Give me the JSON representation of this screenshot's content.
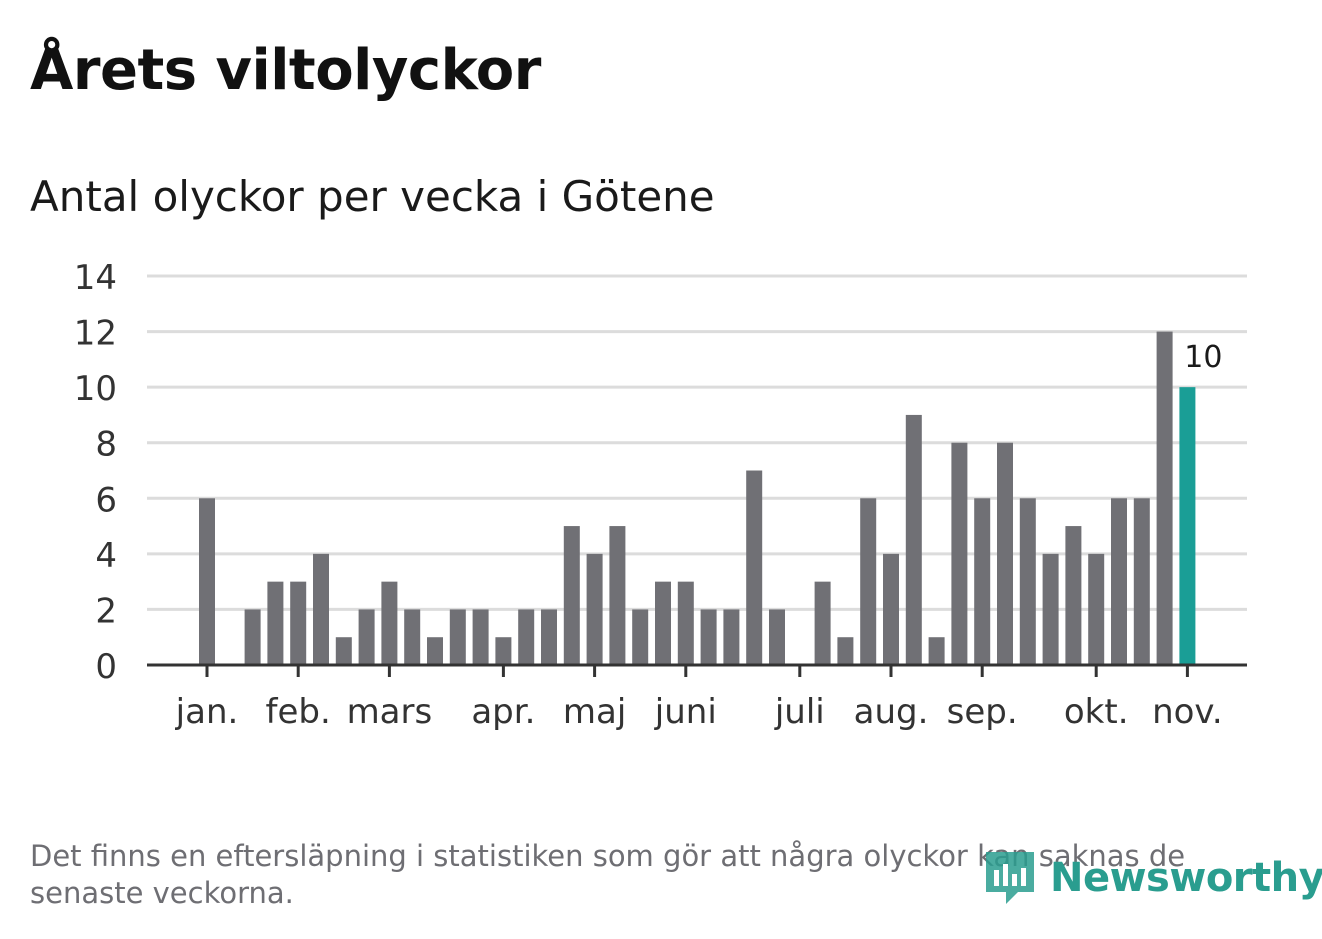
{
  "header": {
    "title": "Årets viltolyckor",
    "subtitle": "Antal olyckor per vecka i Götene"
  },
  "footer": {
    "note": "Det finns en eftersläpning i statistiken som gör att några olyckor kan saknas de senaste veckorna.",
    "brand": "Newsworthy"
  },
  "colors": {
    "bar": "#707075",
    "highlight": "#1a9e96",
    "grid": "#dcdcdc",
    "axis": "#333333",
    "brand": "#2a9d8f"
  },
  "chart_data": {
    "type": "bar",
    "ylim": [
      0,
      14
    ],
    "yticks": [
      0,
      2,
      4,
      6,
      8,
      10,
      12,
      14
    ],
    "weeks": [
      1,
      2,
      3,
      4,
      5,
      6,
      7,
      8,
      9,
      10,
      11,
      12,
      13,
      14,
      15,
      16,
      17,
      18,
      19,
      20,
      21,
      22,
      23,
      24,
      25,
      26,
      27,
      28,
      29,
      30,
      31,
      32,
      33,
      34,
      35,
      36,
      37,
      38,
      39,
      40,
      41,
      42,
      43,
      44,
      45
    ],
    "values": [
      6,
      0,
      2,
      3,
      3,
      4,
      1,
      2,
      3,
      2,
      1,
      2,
      2,
      1,
      2,
      2,
      5,
      4,
      5,
      2,
      3,
      3,
      2,
      2,
      7,
      2,
      0,
      3,
      1,
      6,
      4,
      9,
      1,
      8,
      6,
      8,
      6,
      4,
      5,
      4,
      6,
      6,
      12,
      10,
      0
    ],
    "highlight_index": 43,
    "highlight_label": "10",
    "month_labels": [
      {
        "label": "jan.",
        "week": 1.0
      },
      {
        "label": "feb.",
        "week": 5.0
      },
      {
        "label": "mars",
        "week": 9.0
      },
      {
        "label": "apr.",
        "week": 14.0
      },
      {
        "label": "maj",
        "week": 18.0
      },
      {
        "label": "juni",
        "week": 22.0
      },
      {
        "label": "juli",
        "week": 27.0
      },
      {
        "label": "aug.",
        "week": 31.0
      },
      {
        "label": "sep.",
        "week": 35.0
      },
      {
        "label": "okt.",
        "week": 40.0
      },
      {
        "label": "nov.",
        "week": 44.0
      }
    ],
    "grid": true,
    "legend": "none"
  }
}
